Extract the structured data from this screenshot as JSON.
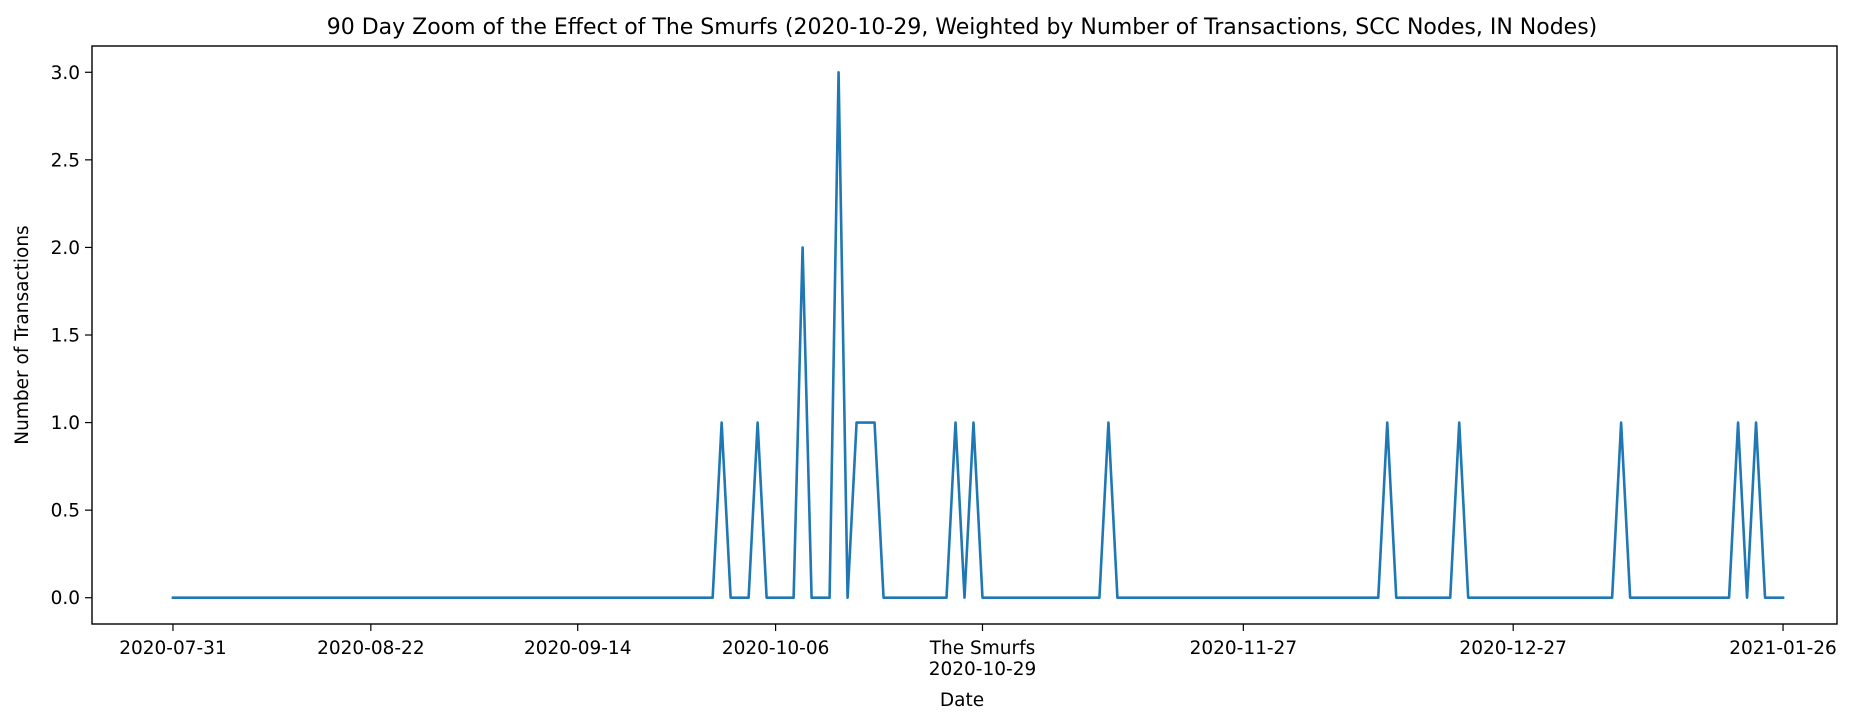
{
  "chart_data": {
    "type": "line",
    "title": "90 Day Zoom of the Effect of The Smurfs (2020-10-29, Weighted by Number of Transactions, SCC Nodes, IN Nodes)",
    "xlabel": "Date",
    "ylabel": "Number of Transactions",
    "ylim": [
      -0.15,
      3.15
    ],
    "yticks": [
      0.0,
      0.5,
      1.0,
      1.5,
      2.0,
      2.5,
      3.0
    ],
    "ytick_labels": [
      "0.0",
      "0.5",
      "1.0",
      "1.5",
      "2.0",
      "2.5",
      "3.0"
    ],
    "xlim": [
      "2020-07-22",
      "2021-02-01"
    ],
    "xticks": [
      {
        "date": "2020-07-31",
        "lines": [
          "2020-07-31"
        ]
      },
      {
        "date": "2020-08-22",
        "lines": [
          "2020-08-22"
        ]
      },
      {
        "date": "2020-09-14",
        "lines": [
          "2020-09-14"
        ]
      },
      {
        "date": "2020-10-06",
        "lines": [
          "2020-10-06"
        ]
      },
      {
        "date": "2020-10-29",
        "lines": [
          "The Smurfs",
          "2020-10-29"
        ]
      },
      {
        "date": "2020-11-27",
        "lines": [
          "2020-11-27"
        ]
      },
      {
        "date": "2020-12-27",
        "lines": [
          "2020-12-27"
        ]
      },
      {
        "date": "2021-01-26",
        "lines": [
          "2021-01-26"
        ]
      }
    ],
    "grid": false,
    "series": [
      {
        "color": "#1f77b4",
        "x": [
          "2020-07-31",
          "2020-09-29",
          "2020-09-30",
          "2020-10-01",
          "2020-10-03",
          "2020-10-04",
          "2020-10-05",
          "2020-10-08",
          "2020-10-09",
          "2020-10-10",
          "2020-10-12",
          "2020-10-13",
          "2020-10-14",
          "2020-10-15",
          "2020-10-16",
          "2020-10-17",
          "2020-10-18",
          "2020-10-19",
          "2020-10-25",
          "2020-10-26",
          "2020-10-27",
          "2020-10-28",
          "2020-10-29",
          "2020-11-11",
          "2020-11-12",
          "2020-11-13",
          "2020-12-12",
          "2020-12-13",
          "2020-12-14",
          "2020-12-20",
          "2020-12-21",
          "2020-12-22",
          "2021-01-07",
          "2021-01-08",
          "2021-01-09",
          "2021-01-20",
          "2021-01-21",
          "2021-01-22",
          "2021-01-23",
          "2021-01-24",
          "2021-01-26"
        ],
        "y": [
          0,
          0,
          1,
          0,
          0,
          1,
          0,
          0,
          2,
          0,
          0,
          3,
          0,
          1,
          1,
          1,
          0,
          0,
          0,
          1,
          0,
          1,
          0,
          0,
          1,
          0,
          0,
          1,
          0,
          0,
          1,
          0,
          0,
          1,
          0,
          0,
          1,
          0,
          1,
          0,
          0
        ]
      }
    ]
  }
}
